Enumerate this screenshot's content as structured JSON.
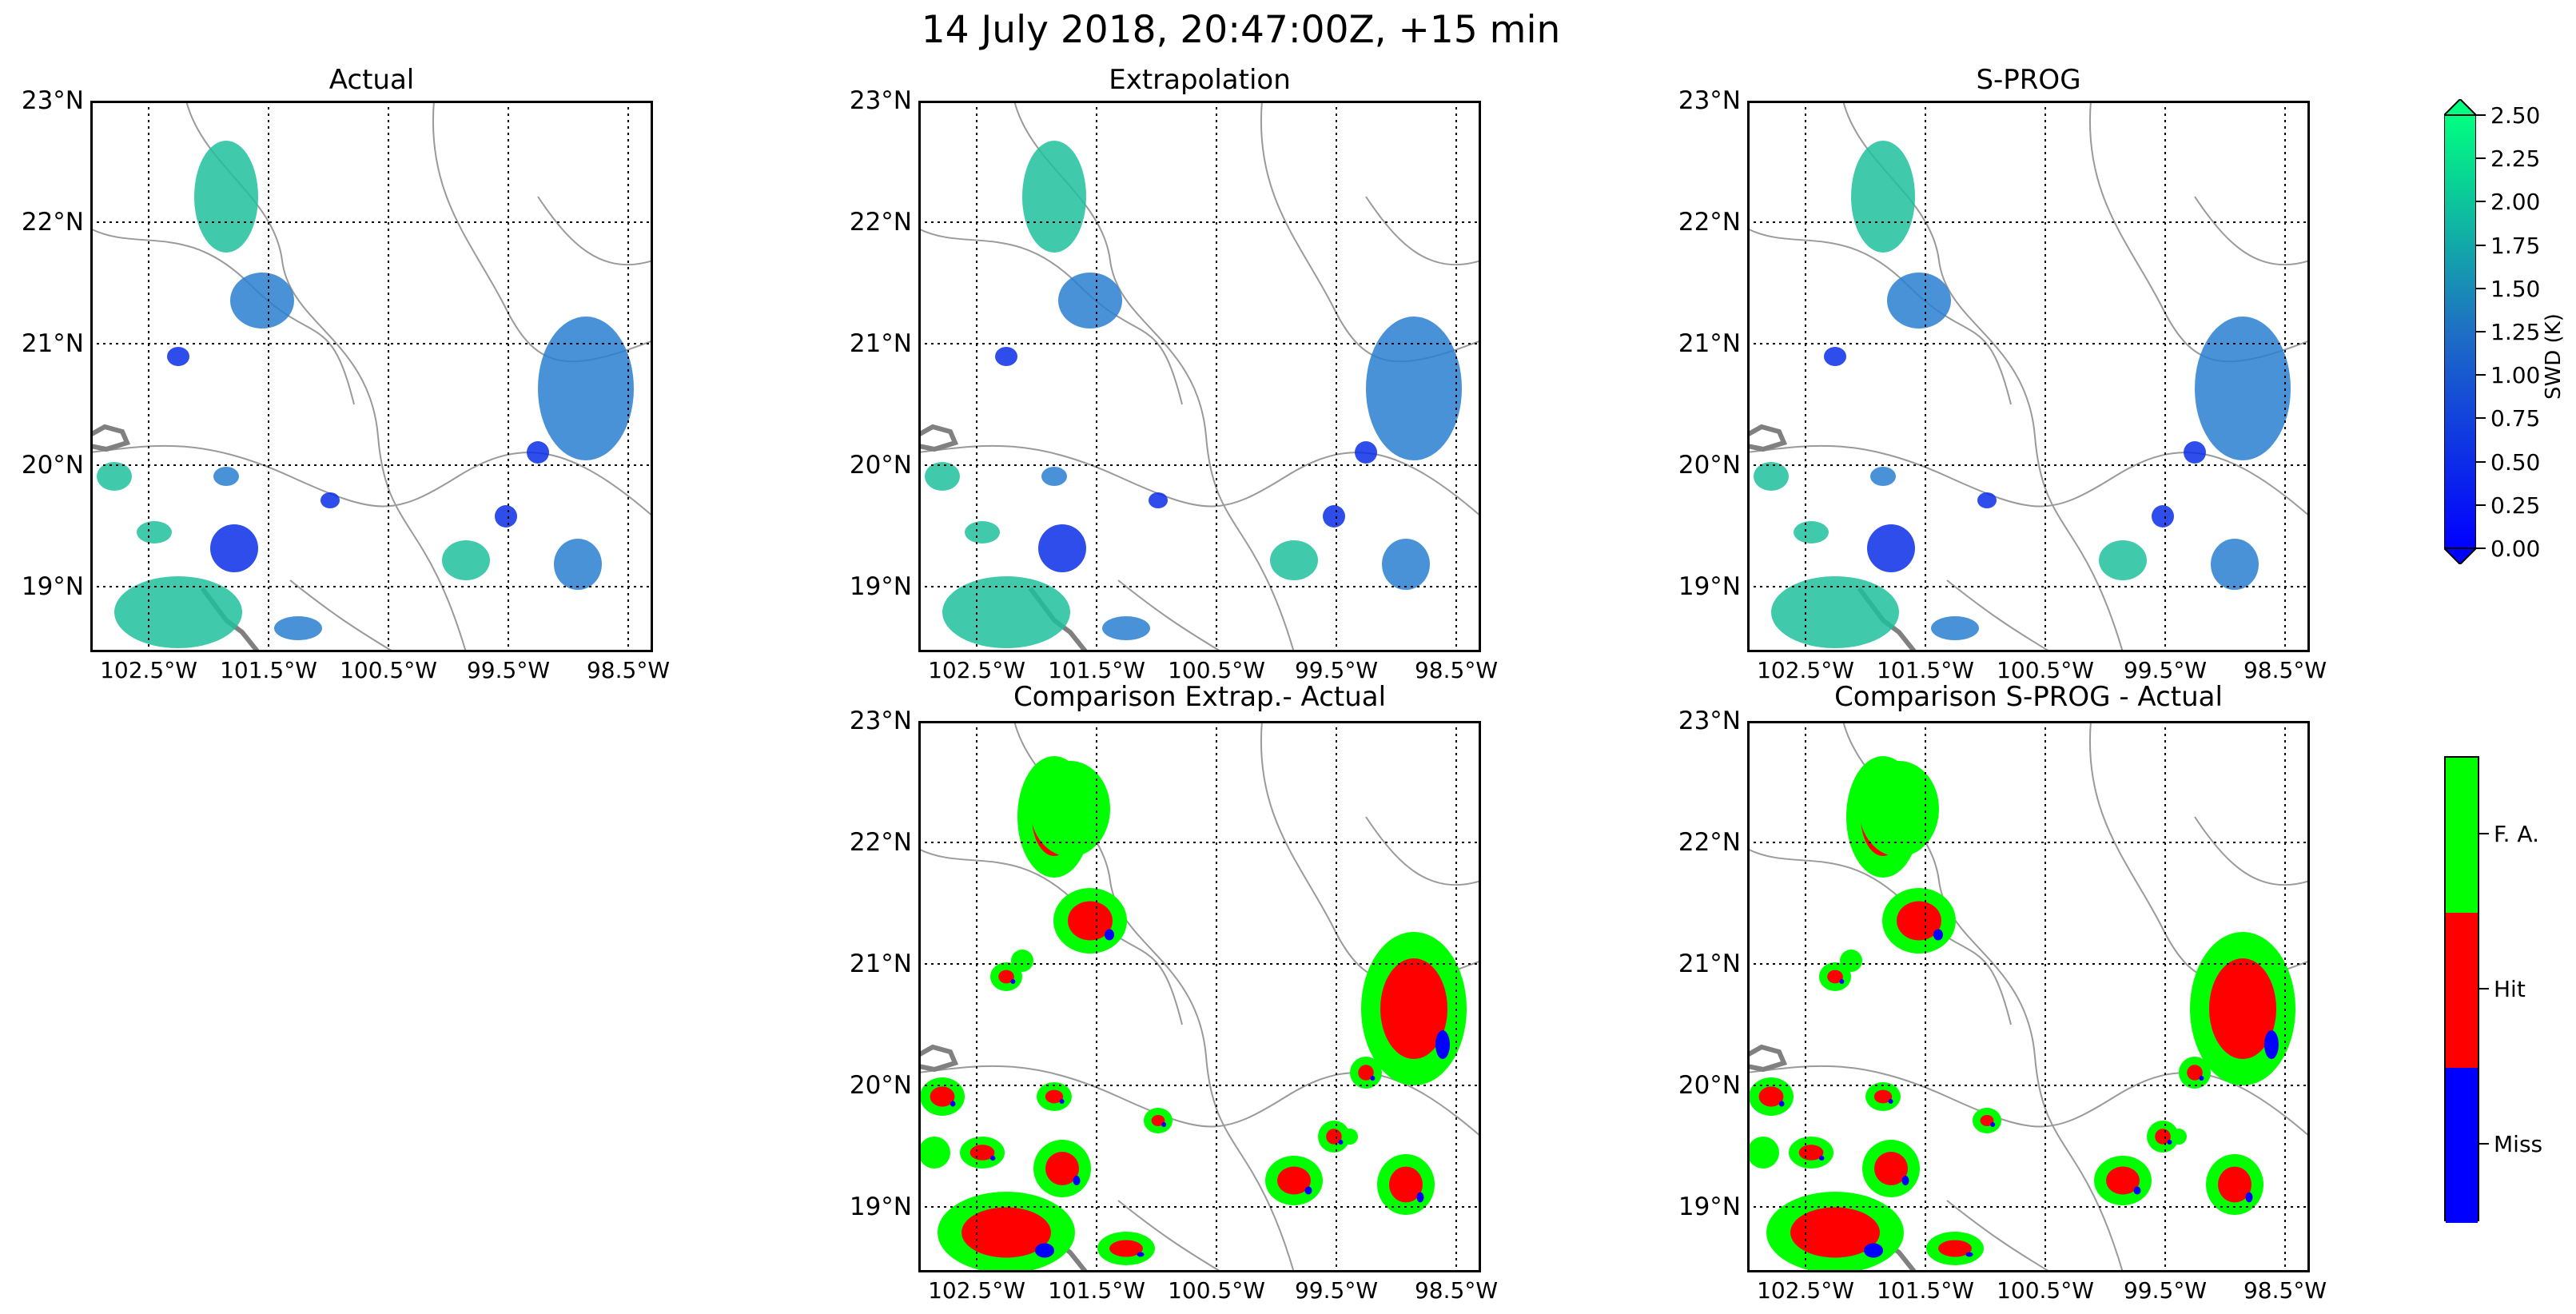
{
  "figure": {
    "title": "14 July 2018, 20:47:00Z, +15 min"
  },
  "panels": [
    {
      "id": "actual",
      "title": "Actual",
      "kind": "swd"
    },
    {
      "id": "extrap",
      "title": "Extrapolation",
      "kind": "swd"
    },
    {
      "id": "sprog",
      "title": "S-PROG",
      "kind": "swd"
    },
    {
      "id": "cmp_extrap",
      "title": "Comparison Extrap.- Actual",
      "kind": "comparison"
    },
    {
      "id": "cmp_sprog",
      "title": "Comparison S-PROG - Actual",
      "kind": "comparison"
    }
  ],
  "axes": {
    "lat_labels": [
      "23°N",
      "22°N",
      "21°N",
      "20°N",
      "19°N"
    ],
    "lon_labels": [
      "102.5°W",
      "101.5°W",
      "100.5°W",
      "99.5°W",
      "98.5°W"
    ]
  },
  "swd_colorbar": {
    "label": "SWD (K)",
    "ticks": [
      "2.50",
      "2.25",
      "2.00",
      "1.75",
      "1.50",
      "1.25",
      "1.00",
      "0.75",
      "0.50",
      "0.25",
      "0.00"
    ],
    "range": [
      0.0,
      2.5
    ],
    "colors": {
      "low": "#0000ff",
      "mid": "#1e6fc4",
      "high": "#00ff80"
    }
  },
  "category_colorbar": {
    "categories": [
      {
        "label": "F. A.",
        "color": "#00ff00"
      },
      {
        "label": "Hit",
        "color": "#ff0000"
      },
      {
        "label": "Miss",
        "color": "#0000ff"
      }
    ]
  }
}
